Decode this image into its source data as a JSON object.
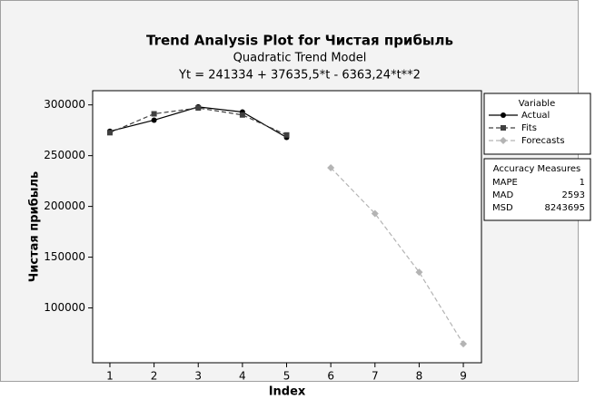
{
  "chart_data": {
    "type": "line",
    "title": "Trend Analysis Plot for Чистая прибыль",
    "subtitle": "Quadratic Trend Model",
    "equation": "Yt = 241334 + 37635,5*t - 6363,24*t**2",
    "x_label": "Index",
    "y_label": "Чистая прибыль",
    "xlim": [
      0.61,
      9.41
    ],
    "xticks": [
      1,
      2,
      3,
      4,
      5,
      6,
      7,
      8,
      9
    ],
    "ylim": [
      46000,
      314000
    ],
    "yticks": [
      100000,
      150000,
      200000,
      250000,
      300000
    ],
    "legend_title": "Variable",
    "series": [
      {
        "name": "Actual",
        "color": "#000000",
        "marker": "circle",
        "dash": "solid",
        "x": [
          1,
          2,
          3,
          4,
          5
        ],
        "values": [
          274000,
          285000,
          298000,
          293000,
          268000
        ]
      },
      {
        "name": "Fits",
        "color": "#404040",
        "marker": "square",
        "dash": "dashed",
        "x": [
          1,
          2,
          3,
          4,
          5
        ],
        "values": [
          272600,
          291200,
          297000,
          290100,
          270400
        ]
      },
      {
        "name": "Forecasts",
        "color": "#b4b4b4",
        "marker": "diamond",
        "dash": "dashed",
        "x": [
          6,
          7,
          8,
          9
        ],
        "values": [
          238100,
          193000,
          135200,
          64600
        ]
      }
    ],
    "accuracy_title": "Accuracy Measures",
    "accuracy": [
      {
        "label": "MAPE",
        "value": 1
      },
      {
        "label": "MAD",
        "value": 2593
      },
      {
        "label": "MSD",
        "value": 8243695
      }
    ]
  }
}
